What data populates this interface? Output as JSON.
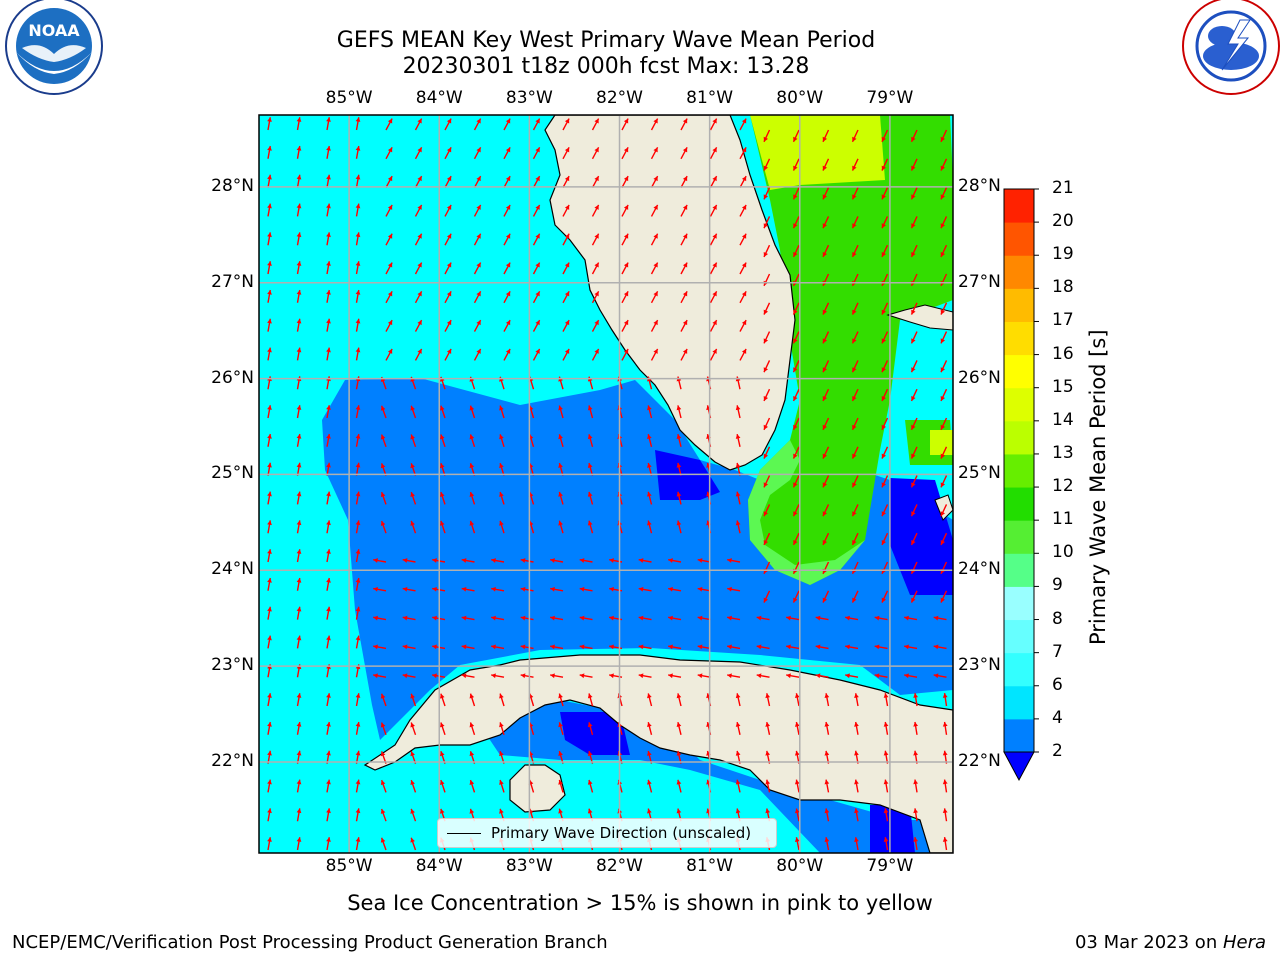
{
  "title": {
    "line1": "GEFS MEAN Key West Primary Wave Mean Period",
    "line2": "20230301 t18z 000h fcst   Max: 13.28"
  },
  "logos": {
    "left": "noaa-logo",
    "right": "national-weather-service-logo",
    "left_text": "NOAA",
    "left_ring_text": "NATIONAL OCEANIC AND ATMOSPHERIC ADMINISTRATION · U.S. DEPARTMENT OF COMMERCE",
    "right_ring_text": "NATIONAL WEATHER SERVICE"
  },
  "map": {
    "lon_labels": [
      "85°W",
      "84°W",
      "83°W",
      "82°W",
      "81°W",
      "80°W",
      "79°W"
    ],
    "lat_labels": [
      "28°N",
      "27°N",
      "26°N",
      "25°N",
      "24°N",
      "23°N",
      "22°N"
    ],
    "lon_values": [
      -85,
      -84,
      -83,
      -82,
      -81,
      -80,
      -79
    ],
    "lat_values": [
      28,
      27,
      26,
      25,
      24,
      23,
      22
    ],
    "lon_range": [
      -86.0,
      -78.3
    ],
    "lat_range": [
      21.05,
      28.75
    ],
    "legend_text": "Primary Wave Direction (unscaled)",
    "colors": {
      "ocean_light": "#00ffff",
      "ocean_mid": "#0080ff",
      "ocean_deep": "#0000ff",
      "green_high": "#33dd00",
      "yellow_green": "#ccff00",
      "land": "#efecdc",
      "arrows": "#ff0000",
      "grid": "#b0b0b0"
    }
  },
  "colorbar": {
    "label": "Primary Wave Mean Period [s]",
    "ticks": [
      "2",
      "4",
      "6",
      "7",
      "8",
      "9",
      "10",
      "11",
      "12",
      "13",
      "14",
      "15",
      "16",
      "17",
      "18",
      "19",
      "20",
      "21"
    ],
    "colors": [
      "#0080ff",
      "#00e5ff",
      "#33ffff",
      "#66ffff",
      "#99ffff",
      "#55ff88",
      "#55ee33",
      "#22dd00",
      "#66ee00",
      "#bbff00",
      "#ddff00",
      "#ffff00",
      "#ffdd00",
      "#ffbb00",
      "#ff8800",
      "#ff5500",
      "#ff2200",
      "#ff0000"
    ],
    "under_color": "#0000ff"
  },
  "note": "Sea Ice Concentration > 15% is shown in pink to yellow",
  "footer": {
    "left": "NCEP/EMC/Verification Post Processing Product Generation Branch",
    "right_prefix": "03 Mar 2023 on ",
    "right_machine": "Hera"
  }
}
